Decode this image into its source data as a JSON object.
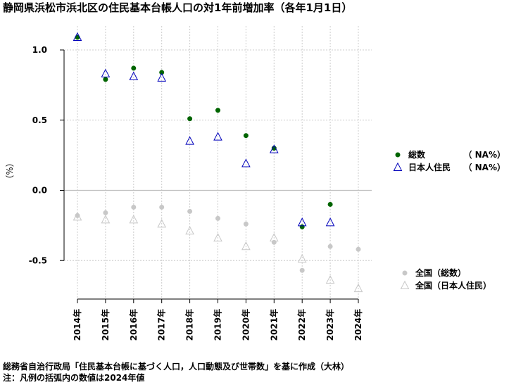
{
  "title": "静岡県浜松市浜北区の住民基本台帳人口の対1年前増加率（各年1月1日）",
  "footer": {
    "source": "総務省自治行政局「住民基本台帳に基づく人口，人口動態及び世帯数」を基に作成（大林）",
    "note": "注：凡例の括弧内の数値は2024年値"
  },
  "chart_data": {
    "type": "scatter",
    "title": "静岡県浜松市浜北区の住民基本台帳人口の対1年前増加率（各年1月1日）",
    "ylabel": "（%）",
    "xlabel": "",
    "ylim": [
      -0.78,
      1.12
    ],
    "grid": true,
    "categories": [
      "2014年",
      "2015年",
      "2016年",
      "2017年",
      "2018年",
      "2019年",
      "2020年",
      "2021年",
      "2022年",
      "2023年",
      "2024年"
    ],
    "y_ticks": [
      1.0,
      0.5,
      0.0,
      -0.5
    ],
    "y_tick_labels": [
      "1.0",
      "0.5",
      "0.0",
      "-0.5"
    ],
    "series": [
      {
        "name": "総数",
        "legend_value": "（ NA%）",
        "marker": "dot",
        "color": "#006400",
        "values": [
          1.09,
          0.79,
          0.87,
          0.84,
          0.51,
          0.57,
          0.39,
          0.3,
          -0.26,
          -0.1,
          null
        ]
      },
      {
        "name": "日本人住民",
        "legend_value": "（ NA%）",
        "marker": "triangle",
        "color": "#0000bb",
        "values": [
          1.09,
          0.83,
          0.81,
          0.8,
          0.35,
          0.38,
          0.19,
          0.29,
          -0.23,
          -0.23,
          null
        ]
      },
      {
        "name": "全国（総数）",
        "marker": "dot",
        "color": "#c8c8c8",
        "values": [
          -0.18,
          -0.16,
          -0.12,
          -0.12,
          -0.15,
          -0.2,
          -0.24,
          -0.37,
          -0.57,
          -0.4,
          -0.42
        ]
      },
      {
        "name": "全国（日本人住民）",
        "marker": "triangle",
        "color": "#c8c8c8",
        "values": [
          -0.19,
          -0.21,
          -0.21,
          -0.24,
          -0.29,
          -0.34,
          -0.4,
          -0.34,
          -0.49,
          -0.64,
          -0.7
        ]
      }
    ],
    "legend": [
      {
        "label": "総数",
        "value": "（ NA%）"
      },
      {
        "label": "日本人住民",
        "value": "（ NA%）"
      },
      {
        "label": "全国（総数）"
      },
      {
        "label": "全国（日本人住民）"
      }
    ],
    "legend_position": "right"
  }
}
